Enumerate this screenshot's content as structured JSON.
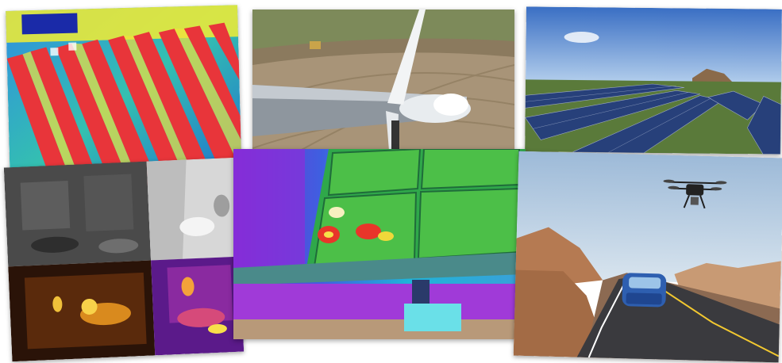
{
  "collage": {
    "tiles": [
      {
        "name": "thermal-solar-farm-aerial"
      },
      {
        "name": "wind-turbine-top-view"
      },
      {
        "name": "solar-panel-field-photo"
      },
      {
        "name": "thermal-camera-quad-view"
      },
      {
        "name": "thermal-solar-panel-closeup"
      },
      {
        "name": "drone-over-road-with-car"
      }
    ]
  }
}
